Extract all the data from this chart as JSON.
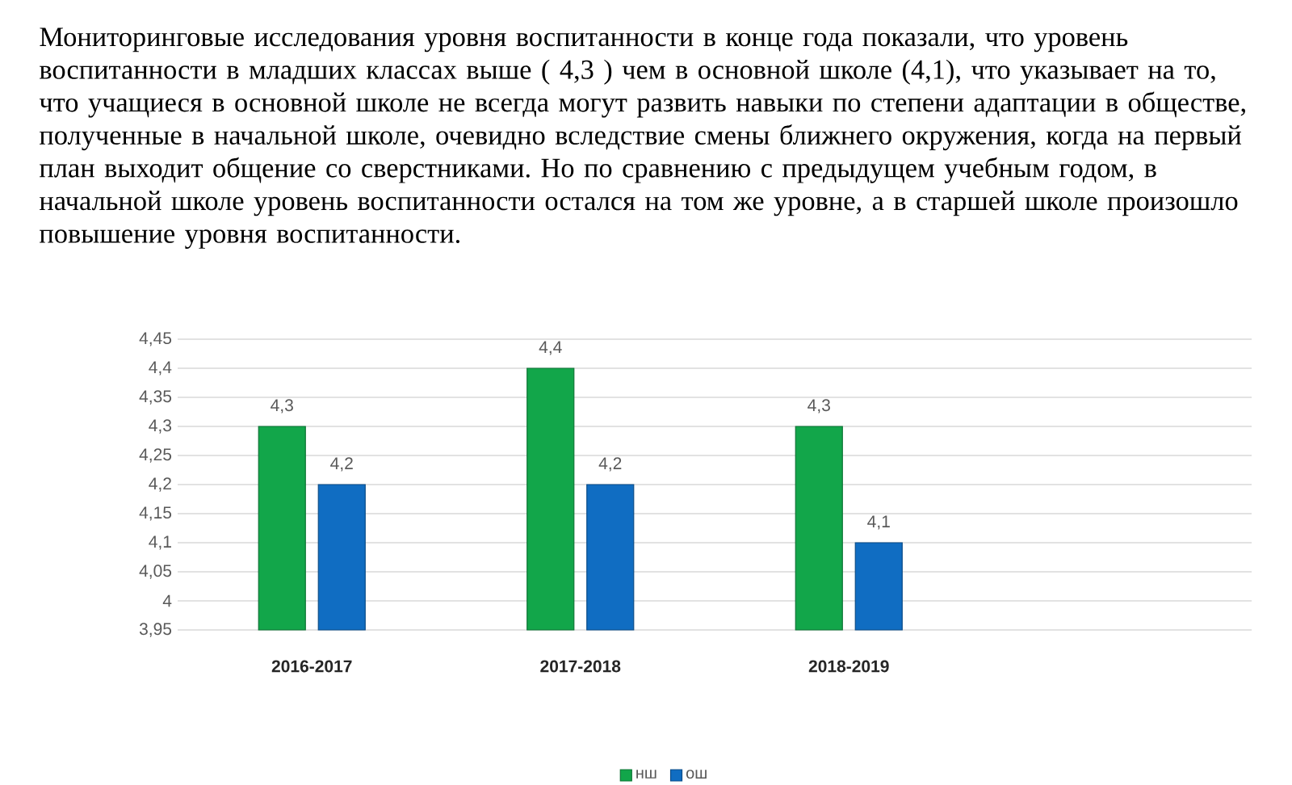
{
  "chart_data": {
    "type": "bar",
    "annotations": [
      "Мониторинговые исследования уровня воспитанности в конце года показали, что уровень воспитанности в младших классах выше ( 4,3 ) чем в основной школе (4,1), что указывает на то, что учащиеся в основной школе не всегда могут развить навыки по степени адаптации в обществе, полученные в начальной школе, очевидно вследствие смены ближнего окружения, когда на первый план выходит общение со сверстниками. Но по сравнению с предыдущем учебным годом, в начальной школе уровень воспитанности остался на том же уровне, а в старшей школе произошло повышение уровня воспитанности."
    ],
    "categories": [
      "2016-2017",
      "2017-2018",
      "2018-2019",
      null
    ],
    "series": [
      {
        "name": "нш",
        "color": "#12a64a",
        "values": [
          4.3,
          4.4,
          4.3,
          null
        ],
        "value_labels": [
          "4,3",
          "4,4",
          "4,3",
          null
        ]
      },
      {
        "name": "ош",
        "color": "#106dc2",
        "values": [
          4.2,
          4.2,
          4.1,
          null
        ],
        "value_labels": [
          "4,2",
          "4,2",
          "4,1",
          null
        ]
      }
    ],
    "ylim": [
      3.95,
      4.45
    ],
    "yticks": [
      {
        "value": 3.95,
        "label": "3,95"
      },
      {
        "value": 4,
        "label": "4"
      },
      {
        "value": 4.05,
        "label": "4,05"
      },
      {
        "value": 4.1,
        "label": "4,1"
      },
      {
        "value": 4.15,
        "label": "4,15"
      },
      {
        "value": 4.2,
        "label": "4,2"
      },
      {
        "value": 4.25,
        "label": "4,25"
      },
      {
        "value": 4.3,
        "label": "4,3"
      },
      {
        "value": 4.35,
        "label": "4,35"
      },
      {
        "value": 4.4,
        "label": "4,4"
      },
      {
        "value": 4.45,
        "label": "4,45"
      }
    ],
    "grid": "y",
    "legend": "bottom"
  }
}
